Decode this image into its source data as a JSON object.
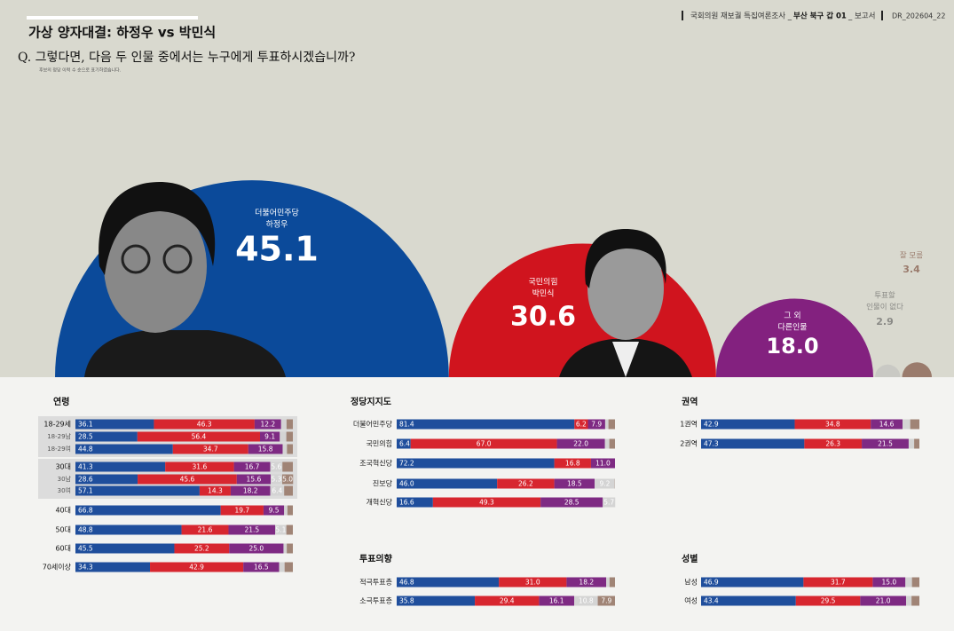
{
  "header": {
    "survey": "국회의원 재보궐 특집여론조사 _",
    "region": "부산 북구 갑 01",
    "doc": "_ 보고서",
    "code": "DR_202604_22"
  },
  "chart_data": [
    {
      "type": "semicircle",
      "title": "가상 양자대결:  하정우 vs 박민식",
      "question": "Q. 그렇다면, 다음 두 인물 중에서는 누구에게 투표하시겠습니까?",
      "note": "후보의 정당 이력 수 순으로 표기하였습니다.",
      "labels": [
        [
          "더불어민주당",
          "하정우"
        ],
        [
          "국민의힘",
          "박민식"
        ],
        [
          "그 외",
          "다른인물"
        ],
        [
          "투표할",
          "인물이 없다"
        ],
        [
          "잘 모름"
        ]
      ],
      "values": [
        45.1,
        30.6,
        18.0,
        2.9,
        3.4
      ],
      "value_labels": [
        "45.1",
        "30.6",
        "18.0",
        "2.9",
        "3.4"
      ],
      "colors": [
        "#0b4a9a",
        "#d0141e",
        "#83217f",
        "#c9c9c4",
        "#9a7b6c"
      ]
    },
    {
      "type": "stacked_bar",
      "title": "연령",
      "xlim": [
        0,
        100
      ],
      "categories": [
        "18-29세",
        "18-29남",
        "18-29여",
        "30대",
        "30남",
        "30여",
        "40대",
        "50대",
        "60대",
        "70세이상"
      ],
      "series": [
        {
          "color": "#1f4e9c",
          "values": [
            36.1,
            28.5,
            44.8,
            41.3,
            28.6,
            57.1,
            66.8,
            48.8,
            45.5,
            34.3
          ],
          "value_labels": [
            "36.1",
            "28.5",
            "44.8",
            "41.3",
            "28.6",
            "57.1",
            "66.8",
            "48.8",
            "45.5",
            "34.3"
          ]
        },
        {
          "color": "#d7262f",
          "values": [
            46.3,
            56.4,
            34.7,
            31.6,
            45.6,
            14.3,
            19.7,
            21.6,
            25.2,
            42.9
          ],
          "value_labels": [
            "46.3",
            "56.4",
            "34.7",
            "31.6",
            "45.6",
            "14.3",
            "19.7",
            "21.6",
            "25.2",
            "42.9"
          ]
        },
        {
          "color": "#7e2a83",
          "values": [
            12.2,
            9.1,
            15.8,
            16.7,
            15.6,
            18.2,
            9.5,
            21.5,
            25.0,
            16.5
          ],
          "value_labels": [
            "12.2",
            "9.1",
            "15.8",
            "16.7",
            "15.6",
            "18.2",
            "9.5",
            "21.5",
            "25.0",
            "16.5"
          ]
        },
        {
          "color": "#d4d4d4",
          "values": [
            2.5,
            3.0,
            2.0,
            5.6,
            5.3,
            6.4,
            1.5,
            5.1,
            1.5,
            2.5
          ],
          "value_labels": [
            null,
            null,
            null,
            "5.6",
            "5.3",
            "6.4",
            null,
            "5.1",
            null,
            null
          ]
        },
        {
          "color": "#a08476",
          "values": [
            2.9,
            3.0,
            2.7,
            4.8,
            5.0,
            4.0,
            2.5,
            3.0,
            2.8,
            3.8
          ],
          "value_labels": [
            null,
            null,
            null,
            null,
            "5.0",
            null,
            null,
            null,
            null,
            null
          ]
        }
      ]
    },
    {
      "type": "stacked_bar",
      "title": "정당지지도",
      "xlim": [
        0,
        100
      ],
      "categories": [
        "더불어민주당",
        "국민의힘",
        "조국혁신당",
        "진보당",
        "개혁신당"
      ],
      "series": [
        {
          "color": "#1f4e9c",
          "values": [
            81.4,
            6.4,
            72.2,
            46.0,
            16.6
          ],
          "value_labels": [
            "81.4",
            "6.4",
            "72.2",
            "46.0",
            "16.6"
          ]
        },
        {
          "color": "#d7262f",
          "values": [
            6.2,
            67.0,
            16.8,
            26.2,
            49.3
          ],
          "value_labels": [
            "6.2",
            "67.0",
            "16.8",
            "26.2",
            "49.3"
          ]
        },
        {
          "color": "#7e2a83",
          "values": [
            7.9,
            22.0,
            11.0,
            18.5,
            28.5
          ],
          "value_labels": [
            "7.9",
            "22.0",
            "11.0",
            "18.5",
            "28.5"
          ]
        },
        {
          "color": "#d4d4d4",
          "values": [
            1.5,
            2.0,
            0,
            9.2,
            5.7
          ],
          "value_labels": [
            null,
            null,
            null,
            "9.2",
            "5.7"
          ]
        },
        {
          "color": "#a08476",
          "values": [
            3.0,
            2.6,
            0,
            0.1,
            0
          ],
          "value_labels": [
            null,
            null,
            null,
            null,
            null
          ]
        }
      ]
    },
    {
      "type": "stacked_bar",
      "title": "권역",
      "xlim": [
        0,
        100
      ],
      "categories": [
        "1권역",
        "2권역"
      ],
      "series": [
        {
          "color": "#1f4e9c",
          "values": [
            42.9,
            47.3
          ],
          "value_labels": [
            "42.9",
            "47.3"
          ]
        },
        {
          "color": "#d7262f",
          "values": [
            34.8,
            26.3
          ],
          "value_labels": [
            "34.8",
            "26.3"
          ]
        },
        {
          "color": "#7e2a83",
          "values": [
            14.6,
            21.5
          ],
          "value_labels": [
            "14.6",
            "21.5"
          ]
        },
        {
          "color": "#d4d4d4",
          "values": [
            3.5,
            2.5
          ],
          "value_labels": [
            null,
            null
          ]
        },
        {
          "color": "#a08476",
          "values": [
            4.2,
            2.4
          ],
          "value_labels": [
            null,
            null
          ]
        }
      ]
    },
    {
      "type": "stacked_bar",
      "title": "투표의향",
      "xlim": [
        0,
        100
      ],
      "categories": [
        "적극투표층",
        "소극투표층"
      ],
      "series": [
        {
          "color": "#1f4e9c",
          "values": [
            46.8,
            35.8
          ],
          "value_labels": [
            "46.8",
            "35.8"
          ]
        },
        {
          "color": "#d7262f",
          "values": [
            31.0,
            29.4
          ],
          "value_labels": [
            "31.0",
            "29.4"
          ]
        },
        {
          "color": "#7e2a83",
          "values": [
            18.2,
            16.1
          ],
          "value_labels": [
            "18.2",
            "16.1"
          ]
        },
        {
          "color": "#d4d4d4",
          "values": [
            1.5,
            10.8
          ],
          "value_labels": [
            null,
            "10.8"
          ]
        },
        {
          "color": "#a08476",
          "values": [
            2.5,
            7.9
          ],
          "value_labels": [
            null,
            "7.9"
          ]
        }
      ]
    },
    {
      "type": "stacked_bar",
      "title": "성별",
      "xlim": [
        0,
        100
      ],
      "categories": [
        "남성",
        "여성"
      ],
      "series": [
        {
          "color": "#1f4e9c",
          "values": [
            46.9,
            43.4
          ],
          "value_labels": [
            "46.9",
            "43.4"
          ]
        },
        {
          "color": "#d7262f",
          "values": [
            31.7,
            29.5
          ],
          "value_labels": [
            "31.7",
            "29.5"
          ]
        },
        {
          "color": "#7e2a83",
          "values": [
            15.0,
            21.0
          ],
          "value_labels": [
            "15.0",
            "21.0"
          ]
        },
        {
          "color": "#d4d4d4",
          "values": [
            3.0,
            2.5
          ],
          "value_labels": [
            null,
            null
          ]
        },
        {
          "color": "#a08476",
          "values": [
            3.4,
            3.6
          ],
          "value_labels": [
            null,
            null
          ]
        }
      ]
    }
  ]
}
